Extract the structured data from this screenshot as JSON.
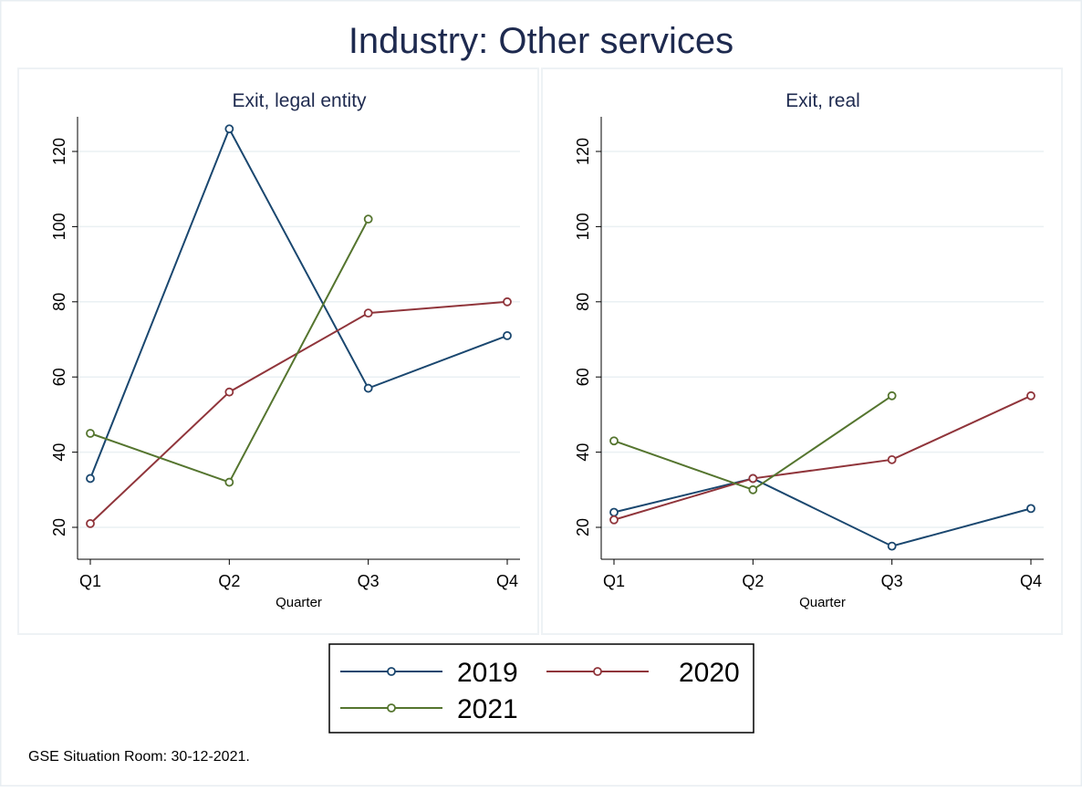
{
  "title": "Industry: Other services",
  "footer": "GSE Situation Room: 30-12-2021.",
  "colors": {
    "2019": "#1a476f",
    "2020": "#90353b",
    "2021": "#55752f"
  },
  "chart_data": [
    {
      "type": "line",
      "title": "Exit, legal entity",
      "xlabel": "Quarter",
      "ylabel": "",
      "categories": [
        "Q1",
        "Q2",
        "Q3",
        "Q4"
      ],
      "yticks": [
        20,
        40,
        60,
        80,
        100,
        120
      ],
      "ylim": [
        12,
        130
      ],
      "grid": true,
      "series": [
        {
          "name": "2019",
          "values": [
            33,
            126,
            57,
            71
          ]
        },
        {
          "name": "2020",
          "values": [
            21,
            56,
            77,
            80
          ]
        },
        {
          "name": "2021",
          "values": [
            45,
            32,
            102,
            null
          ]
        }
      ]
    },
    {
      "type": "line",
      "title": "Exit, real",
      "xlabel": "Quarter",
      "ylabel": "",
      "categories": [
        "Q1",
        "Q2",
        "Q3",
        "Q4"
      ],
      "yticks": [
        20,
        40,
        60,
        80,
        100,
        120
      ],
      "ylim": [
        12,
        130
      ],
      "grid": true,
      "series": [
        {
          "name": "2019",
          "values": [
            24,
            33,
            15,
            25
          ]
        },
        {
          "name": "2020",
          "values": [
            22,
            33,
            38,
            55
          ]
        },
        {
          "name": "2021",
          "values": [
            43,
            30,
            55,
            null
          ]
        }
      ]
    }
  ],
  "legend": {
    "placement": "bottom",
    "items": [
      "2019",
      "2020",
      "2021"
    ]
  }
}
